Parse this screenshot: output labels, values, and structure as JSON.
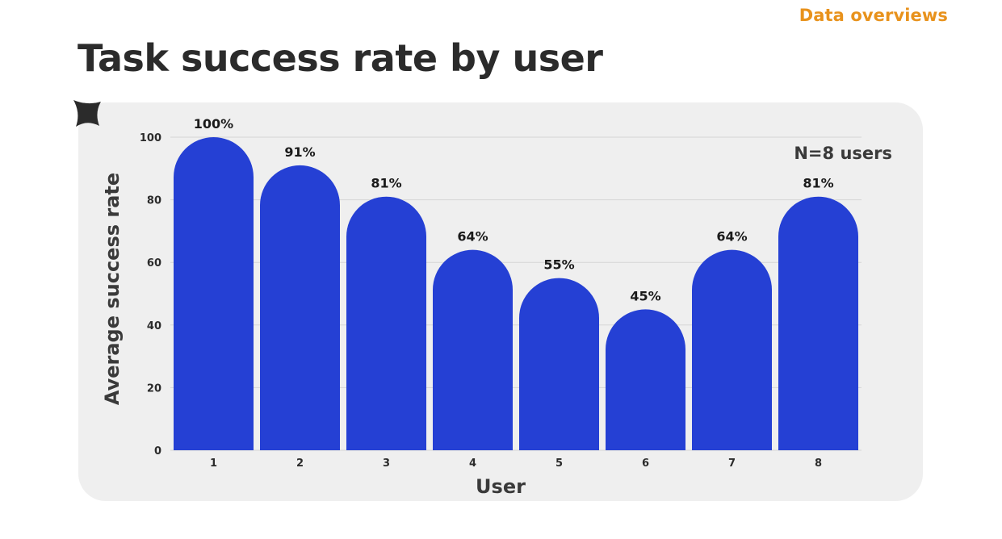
{
  "header": {
    "section_label": "Data overviews",
    "title": "Task success rate by user"
  },
  "icons": {
    "decoration": "sparkle-icon"
  },
  "colors": {
    "bar": "#2540d4",
    "accent": "#e8921c",
    "card": "#efefef",
    "gridline": "#d6d6d6",
    "text": "#2b2b2b"
  },
  "chart_data": {
    "type": "bar",
    "title": "Task success rate by user",
    "xlabel": "User",
    "ylabel": "Average success rate",
    "categories": [
      "1",
      "2",
      "3",
      "4",
      "5",
      "6",
      "7",
      "8"
    ],
    "values": [
      100,
      91,
      81,
      64,
      55,
      45,
      64,
      81
    ],
    "data_labels": [
      "100%",
      "91%",
      "81%",
      "64%",
      "55%",
      "45%",
      "64%",
      "81%"
    ],
    "y_ticks": [
      0,
      20,
      40,
      60,
      80,
      100
    ],
    "ylim": [
      0,
      100
    ],
    "grid": true,
    "annotation": "N=8 users"
  }
}
